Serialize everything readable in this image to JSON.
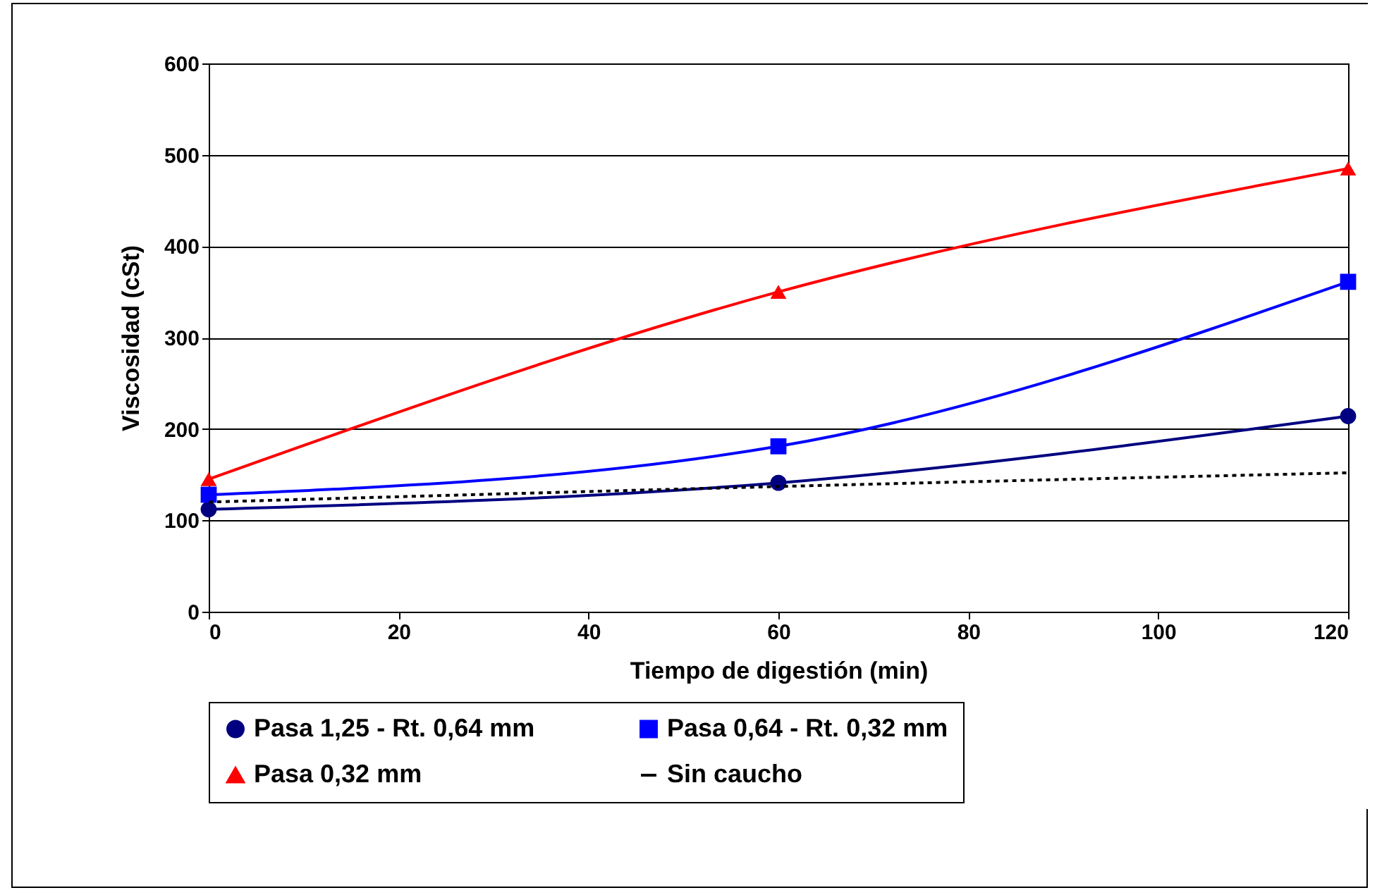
{
  "chart_data": {
    "type": "line",
    "xlabel": "Tiempo de digestión (min)",
    "ylabel": "Viscosidad (cSt)",
    "xlim": [
      0,
      120
    ],
    "xticks": [
      0,
      20,
      40,
      60,
      80,
      100,
      120
    ],
    "ylim": [
      0,
      600
    ],
    "yticks": [
      0,
      100,
      200,
      300,
      400,
      500,
      600
    ],
    "grid": "y",
    "legend": "bottom",
    "series": [
      {
        "name": "Pasa 1,25 - Rt. 0,64 mm",
        "color": "#000080",
        "marker": "circle",
        "line_style": "solid",
        "x": [
          0,
          60,
          120
        ],
        "values": [
          112,
          141,
          214
        ]
      },
      {
        "name": "Pasa 0,64 - Rt. 0,32 mm",
        "color": "#0000ff",
        "marker": "square",
        "line_style": "solid",
        "x": [
          0,
          60,
          120
        ],
        "values": [
          128,
          181,
          361
        ]
      },
      {
        "name": "Pasa 0,32 mm",
        "color": "#ff0000",
        "marker": "triangle",
        "line_style": "solid",
        "x": [
          0,
          60,
          120
        ],
        "values": [
          145,
          350,
          485
        ]
      },
      {
        "name": "Sin caucho",
        "color": "#000000",
        "marker": "none",
        "line_style": "dotted",
        "x": [
          0,
          60,
          120
        ],
        "values": [
          120,
          137,
          152
        ]
      }
    ]
  }
}
